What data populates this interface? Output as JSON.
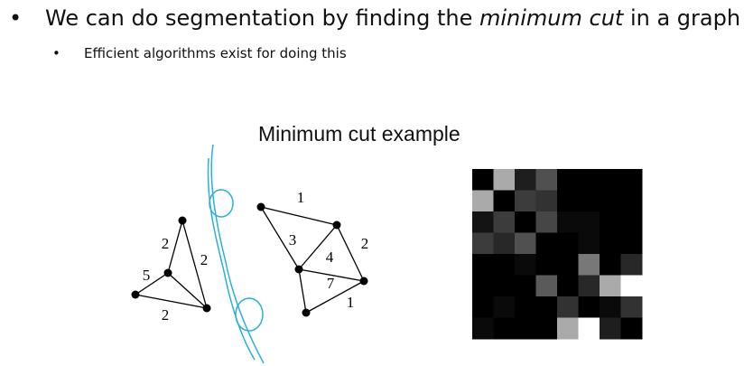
{
  "bullets": [
    {
      "text_before": "We can do segmentation by finding the ",
      "emphasis": "minimum cut",
      "text_after": " in a graph",
      "sub_bullets": [
        "Efficient algorithms exist for doing this"
      ]
    }
  ],
  "figure": {
    "title": "Minimum cut example",
    "graph": {
      "edge_labels": [
        "2",
        "2",
        "5",
        "2",
        "1",
        "3",
        "4",
        "2",
        "7",
        "1"
      ]
    }
  }
}
